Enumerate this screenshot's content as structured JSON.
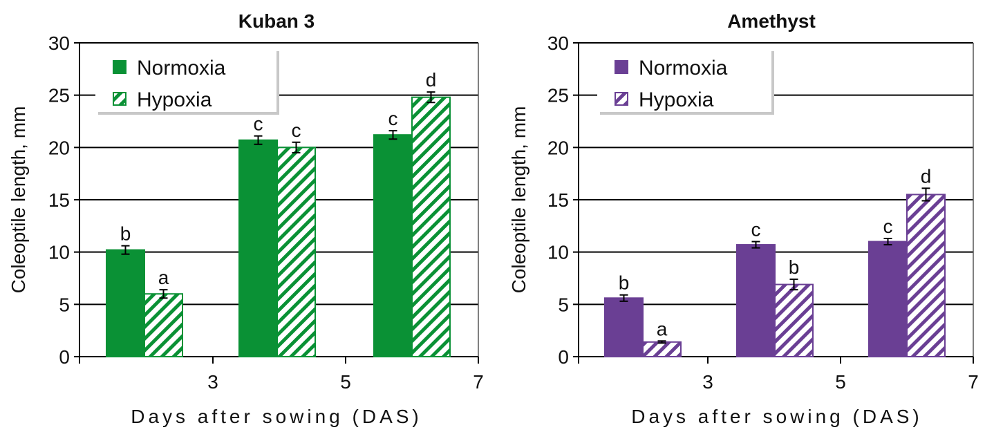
{
  "chart_data": [
    {
      "type": "bar",
      "title": "Kuban 3",
      "xlabel": "Days after sowing (DAS)",
      "ylabel": "Coleoptile length, mm",
      "ylim": [
        0,
        30
      ],
      "yticks": [
        0,
        5,
        10,
        15,
        20,
        25,
        30
      ],
      "xticks": [
        "3",
        "5",
        "7"
      ],
      "grid": "horizontal",
      "legend": "top-left",
      "color": "#0a9135",
      "series": [
        {
          "name": "Normoxia",
          "pattern": "solid",
          "values": [
            10.2,
            20.7,
            21.2
          ],
          "errors": [
            0.4,
            0.4,
            0.4
          ],
          "letters": [
            "b",
            "c",
            "c"
          ]
        },
        {
          "name": "Hypoxia",
          "pattern": "hatched",
          "values": [
            6.0,
            20.0,
            24.8
          ],
          "errors": [
            0.4,
            0.5,
            0.5
          ],
          "letters": [
            "a",
            "c",
            "d"
          ]
        }
      ]
    },
    {
      "type": "bar",
      "title": "Amethyst",
      "xlabel": "Days after sowing (DAS)",
      "ylabel": "Coleoptile length, mm",
      "ylim": [
        0,
        30
      ],
      "yticks": [
        0,
        5,
        10,
        15,
        20,
        25,
        30
      ],
      "xticks": [
        "3",
        "5",
        "7"
      ],
      "grid": "horizontal",
      "legend": "top-left",
      "color": "#6a3f94",
      "series": [
        {
          "name": "Normoxia",
          "pattern": "solid",
          "values": [
            5.6,
            10.7,
            11.0
          ],
          "errors": [
            0.3,
            0.3,
            0.3
          ],
          "letters": [
            "b",
            "c",
            "c"
          ]
        },
        {
          "name": "Hypoxia",
          "pattern": "hatched",
          "values": [
            1.4,
            6.9,
            15.5
          ],
          "errors": [
            0.1,
            0.5,
            0.6
          ],
          "letters": [
            "a",
            "b",
            "d"
          ]
        }
      ]
    }
  ]
}
